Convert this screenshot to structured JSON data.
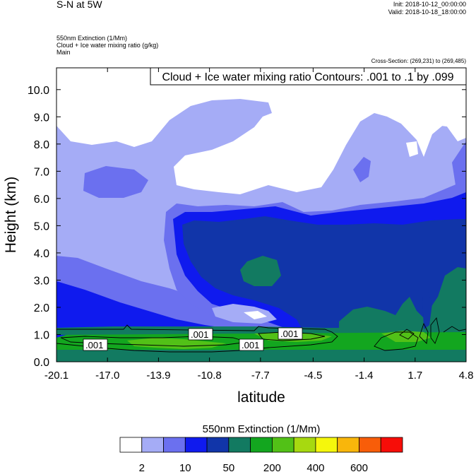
{
  "header": {
    "title": "S-N at 5W",
    "init": "Init: 2018-10-12_00:00:00",
    "valid": "Valid: 2018-10-18_18:00:00",
    "field1": "550nm Extinction   (1/Mm)",
    "field2": "Cloud + Ice water mixing ratio   (g/kg)",
    "field3": "Main",
    "cross_section": "Cross-Section: (269,231) to (269,485)"
  },
  "colors": {
    "white": "#ffffff",
    "level1": "#a5acf6",
    "level2": "#6b70ef",
    "level3": "#0f1aee",
    "level4": "#1135a9",
    "level5": "#127a61",
    "level6": "#13a61f",
    "level7": "#52c117",
    "level8": "#a7d910",
    "level9": "#f5f70c",
    "level10": "#f9b60b",
    "level11": "#f85d09",
    "level12": "#f70d08"
  },
  "chart_data": {
    "type": "heatmap",
    "title": "Cloud + Ice water mixing ratio Contours: .001 to .1 by .099",
    "xlabel": "latitude",
    "ylabel": "Height (km)",
    "xlim": [
      -20.1,
      4.8
    ],
    "ylim": [
      0.0,
      10.8
    ],
    "x_ticks": [
      "-20.1",
      "-17.0",
      "-13.9",
      "-10.8",
      "-7.7",
      "-4.5",
      "-1.4",
      "1.7",
      "4.8"
    ],
    "y_ticks": [
      "0.0",
      "1.0",
      "2.0",
      "3.0",
      "4.0",
      "5.0",
      "6.0",
      "7.0",
      "8.0",
      "9.0",
      "10.0"
    ],
    "contour_labels": [
      ".001",
      ".001",
      ".001",
      ".001"
    ],
    "colorbar": {
      "title": "550nm Extinction  (1/Mm)",
      "labels": [
        "2",
        "10",
        "50",
        "200",
        "400",
        "600"
      ],
      "bins": 12
    }
  }
}
